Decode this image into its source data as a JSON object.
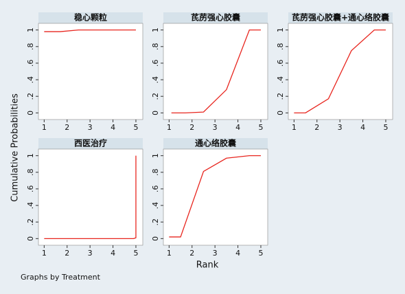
{
  "chart_data": [
    {
      "type": "line",
      "title": "稳心颗粒",
      "xlim": [
        0.75,
        5.3
      ],
      "ylim": [
        -0.08,
        1.08
      ],
      "xticks": [
        1,
        2,
        3,
        4,
        5
      ],
      "yticks": [
        0,
        {
          "value": 0.2,
          "label": ".2"
        },
        {
          "value": 0.4,
          "label": ".4"
        },
        {
          "value": 0.6,
          "label": ".6"
        },
        {
          "value": 0.8,
          "label": ".8"
        },
        1
      ],
      "color": "#e8251e",
      "x": [
        1,
        1.7,
        2.5,
        5
      ],
      "values": [
        0.98,
        0.98,
        1,
        1
      ]
    },
    {
      "type": "line",
      "title": "芪苈强心胶囊",
      "xlim": [
        0.75,
        5.3
      ],
      "ylim": [
        -0.08,
        1.08
      ],
      "xticks": [
        1,
        2,
        3,
        4,
        5
      ],
      "yticks": [
        0,
        {
          "value": 0.2,
          "label": ".2"
        },
        {
          "value": 0.4,
          "label": ".4"
        },
        {
          "value": 0.6,
          "label": ".6"
        },
        {
          "value": 0.8,
          "label": ".8"
        },
        1
      ],
      "color": "#e8251e",
      "x": [
        1.1,
        1.7,
        2.5,
        3.5,
        4.5,
        5
      ],
      "values": [
        0,
        0,
        0.01,
        0.28,
        1,
        1
      ]
    },
    {
      "type": "line",
      "title": "芪苈强心胶囊+通心络胶囊",
      "xlim": [
        0.75,
        5.3
      ],
      "ylim": [
        -0.08,
        1.08
      ],
      "xticks": [
        1,
        2,
        3,
        4,
        5
      ],
      "yticks": [
        0,
        {
          "value": 0.2,
          "label": ".2"
        },
        {
          "value": 0.4,
          "label": ".4"
        },
        {
          "value": 0.6,
          "label": ".6"
        },
        {
          "value": 0.8,
          "label": ".8"
        },
        1
      ],
      "color": "#e8251e",
      "x": [
        1,
        1.5,
        2.5,
        3.5,
        4.5,
        5
      ],
      "values": [
        0,
        0,
        0.17,
        0.75,
        1,
        1
      ]
    },
    {
      "type": "line",
      "title": "西医治疗",
      "xlim": [
        0.75,
        5.3
      ],
      "ylim": [
        -0.08,
        1.08
      ],
      "xticks": [
        1,
        2,
        3,
        4,
        5
      ],
      "yticks": [
        0,
        {
          "value": 0.2,
          "label": ".2"
        },
        {
          "value": 0.4,
          "label": ".4"
        },
        {
          "value": 0.6,
          "label": ".6"
        },
        {
          "value": 0.8,
          "label": ".8"
        },
        1
      ],
      "color": "#e8251e",
      "x": [
        1,
        4.9,
        5,
        5
      ],
      "values": [
        0,
        0,
        0.01,
        1
      ]
    },
    {
      "type": "line",
      "title": "通心络胶囊",
      "xlim": [
        0.75,
        5.3
      ],
      "ylim": [
        -0.08,
        1.08
      ],
      "xticks": [
        1,
        2,
        3,
        4,
        5
      ],
      "yticks": [
        0,
        {
          "value": 0.2,
          "label": ".2"
        },
        {
          "value": 0.4,
          "label": ".4"
        },
        {
          "value": 0.6,
          "label": ".6"
        },
        {
          "value": 0.8,
          "label": ".8"
        },
        1
      ],
      "color": "#e8251e",
      "x": [
        1,
        1.5,
        2.5,
        3.5,
        4.5,
        5
      ],
      "values": [
        0.02,
        0.02,
        0.81,
        0.97,
        1,
        1
      ]
    }
  ],
  "y_label": "Cumulative Probabilities",
  "x_label": "Rank",
  "note": "Graphs by Treatment"
}
